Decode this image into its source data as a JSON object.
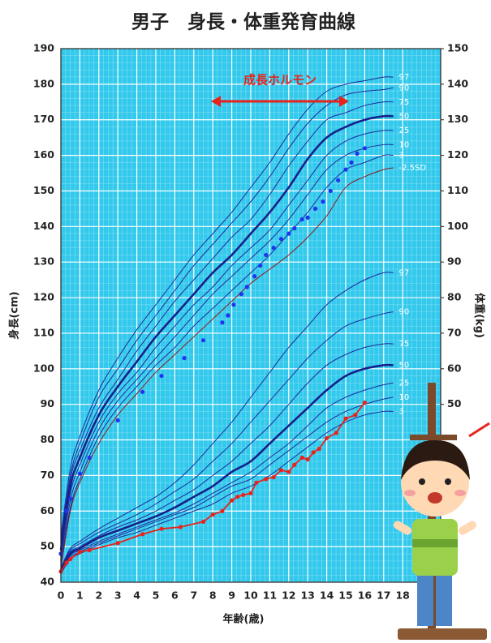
{
  "chart_data": {
    "type": "line",
    "title": "男子　身長・体重発育曲線",
    "ylabel": "身長(cm)",
    "y2label": "体重(kg)",
    "xlabel": "年齢(歳)",
    "annotation": "成長ホルモン",
    "xlim": [
      0,
      20
    ],
    "xticks": [
      0,
      1,
      2,
      3,
      4,
      5,
      6,
      7,
      8,
      9,
      10,
      11,
      12,
      13,
      14,
      15,
      16,
      17,
      18
    ],
    "ylim": [
      40,
      190
    ],
    "yticks": [
      40,
      50,
      60,
      70,
      80,
      90,
      100,
      110,
      120,
      130,
      140,
      150,
      160,
      170,
      180,
      190
    ],
    "y2lim": [
      0,
      150
    ],
    "y2ticks": [
      50,
      60,
      70,
      80,
      90,
      100,
      110,
      120,
      130,
      140,
      150
    ],
    "grid": true,
    "x": [
      0,
      0.5,
      1,
      2,
      3,
      4,
      5,
      6,
      7,
      8,
      9,
      10,
      11,
      12,
      13,
      14,
      15,
      16,
      17,
      17.5
    ],
    "series": [
      {
        "name": "97",
        "color": "#1c2c9c",
        "values": [
          53,
          72,
          81,
          94,
          103,
          111,
          118,
          125,
          132,
          138,
          144,
          151,
          158,
          166,
          173,
          178,
          180,
          181,
          182,
          182
        ]
      },
      {
        "name": "90",
        "color": "#1c2c9c",
        "values": [
          52,
          70,
          79,
          92,
          100,
          108,
          115,
          122,
          129,
          135,
          141,
          147,
          154,
          162,
          169,
          174,
          177,
          178,
          178.5,
          179
        ]
      },
      {
        "name": "75",
        "color": "#1c2c9c",
        "values": [
          50.5,
          69,
          77,
          89,
          97,
          105,
          112,
          119,
          125,
          131,
          137,
          142,
          149,
          157,
          164,
          170,
          172,
          174,
          175,
          175
        ]
      },
      {
        "name": "50",
        "color": "#16208a",
        "emphasis": true,
        "values": [
          49,
          67,
          75,
          87,
          95,
          102,
          109,
          115,
          121,
          127,
          132,
          138,
          144,
          151,
          159,
          165,
          168,
          170,
          171,
          171
        ]
      },
      {
        "name": "25",
        "color": "#1c2c9c",
        "values": [
          47.5,
          65,
          73,
          85,
          93,
          99,
          106,
          112,
          118,
          123,
          129,
          134,
          139,
          146,
          153,
          160,
          164,
          166,
          167,
          167
        ]
      },
      {
        "name": "10",
        "color": "#1c2c9c",
        "values": [
          46.5,
          63,
          71,
          83,
          91,
          97,
          103,
          109,
          115,
          121,
          126,
          131,
          136,
          142,
          149,
          156,
          160,
          162,
          163,
          163
        ]
      },
      {
        "name": "3",
        "color": "#1c2c9c",
        "values": [
          45,
          61,
          69,
          81,
          89,
          95,
          101,
          106,
          112,
          117,
          122,
          127,
          132,
          138,
          144,
          151,
          156,
          158,
          160,
          160
        ]
      },
      {
        "name": "-2.5SD",
        "color": "#8b1a1a",
        "values": [
          44,
          60,
          68,
          79,
          87,
          93,
          99,
          104,
          109,
          114,
          119,
          124,
          128,
          132,
          137,
          143,
          151,
          154,
          156,
          156.5
        ]
      },
      {
        "name": "97",
        "color": "#1c2c9c",
        "axis": "y2",
        "values": [
          4,
          9.5,
          11.5,
          15,
          18,
          21,
          24,
          28,
          33,
          39,
          45,
          52,
          59,
          66,
          72,
          78,
          82,
          85,
          87,
          87
        ]
      },
      {
        "name": "90",
        "color": "#1c2c9c",
        "axis": "y2",
        "values": [
          3.8,
          9,
          10.8,
          14,
          16.5,
          19,
          22,
          25.5,
          29,
          34,
          39,
          45,
          51,
          57,
          63,
          68,
          72,
          74,
          75.5,
          76
        ]
      },
      {
        "name": "75",
        "color": "#1c2c9c",
        "axis": "y2",
        "values": [
          3.5,
          8.5,
          10,
          13,
          15.5,
          17.5,
          20,
          23,
          26,
          30,
          34,
          39,
          44,
          50,
          56,
          61,
          64,
          66,
          67,
          67
        ]
      },
      {
        "name": "50",
        "color": "#16208a",
        "axis": "y2",
        "emphasis": true,
        "values": [
          3,
          8,
          9.5,
          12.5,
          14.5,
          16.5,
          18.5,
          21,
          24,
          27,
          31,
          34,
          39,
          44,
          49,
          54,
          58,
          60,
          61,
          61
        ]
      },
      {
        "name": "25",
        "color": "#1c2c9c",
        "axis": "y2",
        "values": [
          2.8,
          7.5,
          9,
          11.5,
          13.5,
          15.5,
          17.5,
          19.5,
          22,
          25,
          28,
          31,
          35,
          39,
          44,
          49,
          52,
          54,
          55.5,
          56
        ]
      },
      {
        "name": "10",
        "color": "#1c2c9c",
        "axis": "y2",
        "values": [
          2.6,
          7,
          8.5,
          11,
          13,
          15,
          17,
          19,
          21,
          24,
          27,
          29,
          33,
          37,
          41,
          45,
          48,
          50,
          51.5,
          52
        ]
      },
      {
        "name": "3",
        "color": "#1c2c9c",
        "axis": "y2",
        "values": [
          2.4,
          6.5,
          8,
          10.5,
          12.5,
          14,
          16,
          18,
          20,
          22,
          25,
          27,
          30,
          34,
          38,
          42,
          45,
          47,
          48,
          48
        ]
      },
      {
        "color": "#2233ee",
        "markers": true,
        "x": [
          0,
          0.3,
          0.5,
          1,
          1.5,
          3,
          4.3,
          5.3,
          6.5,
          7.5,
          8.5,
          8.8,
          9.1,
          9.5,
          9.8,
          10.2,
          10.5,
          10.8,
          11.2,
          11.6,
          12,
          12.3,
          12.7,
          13,
          13.4,
          13.8,
          14.2,
          14.6,
          15,
          15.3,
          15.6,
          16
        ],
        "values": [
          48,
          60,
          63.5,
          70.5,
          75,
          85.5,
          93.5,
          98,
          103,
          108,
          113,
          115,
          118,
          121,
          123,
          126,
          129,
          132,
          134,
          136.5,
          138,
          139.5,
          142,
          142.5,
          145,
          147,
          150,
          153,
          156,
          158,
          160.5,
          162
        ]
      },
      {
        "color": "#e8231c",
        "axis": "y2",
        "markers": true,
        "line": true,
        "x": [
          0,
          0.3,
          0.5,
          1,
          1.5,
          3,
          4.3,
          5.3,
          6.3,
          7.5,
          8,
          8.5,
          9,
          9.3,
          9.6,
          10,
          10.3,
          10.8,
          11.2,
          11.6,
          12,
          12.3,
          12.7,
          13,
          13.3,
          13.6,
          14,
          14.5,
          15,
          15.5,
          16
        ],
        "values": [
          3,
          5.5,
          6.5,
          8.5,
          9,
          11,
          13.5,
          15,
          15.5,
          17,
          19,
          20,
          23,
          24,
          24.5,
          25,
          28,
          29,
          29.5,
          31.5,
          31,
          33,
          35,
          34.5,
          36.5,
          37.5,
          40.5,
          42,
          46,
          47,
          50.5
        ]
      }
    ]
  }
}
